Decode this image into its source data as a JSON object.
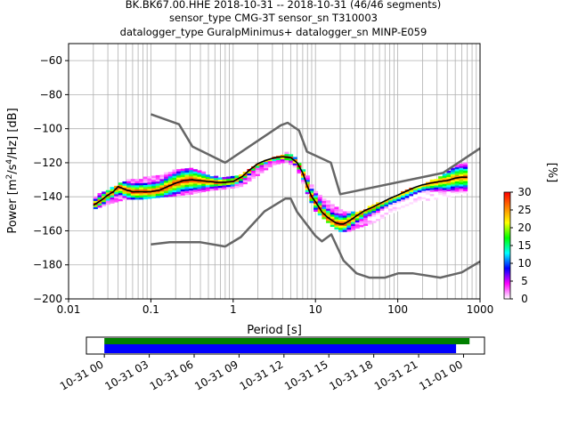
{
  "title_lines": [
    "BK.BK67.00.HHE   2018-10-31 -- 2018-10-31  (46/46 segments)",
    "sensor_type CMG-3T sensor_sn T310003",
    "datalogger_type GuralpMinimus+ datalogger_sn MINP-E059"
  ],
  "colorbar": {
    "label": "[%]",
    "ticks": [
      "0",
      "5",
      "10",
      "15",
      "20",
      "25",
      "30"
    ],
    "range": [
      0,
      30
    ],
    "colormap": "pqlx",
    "colors": [
      "#ffffff",
      "#ff00ff",
      "#0000ff",
      "#00ffff",
      "#00ff00",
      "#ffff00",
      "#ff8000",
      "#ff0000"
    ]
  },
  "timeline": {
    "tick_labels": [
      "10-31 00",
      "10-31 03",
      "10-31 06",
      "10-31 09",
      "10-31 12",
      "10-31 15",
      "10-31 18",
      "10-31 21",
      "11-01 00"
    ],
    "tick_hours": [
      0,
      3,
      6,
      9,
      12,
      15,
      18,
      21,
      24
    ],
    "range_hours": [
      -1.2,
      25.4
    ],
    "green_bar_hours": [
      0,
      24.4
    ],
    "blue_bar_hours": [
      0,
      23.5
    ],
    "green_color": "#008000",
    "blue_color": "#0000ff"
  },
  "chart_data": {
    "type": "heatmap",
    "xlabel": "Period [s]",
    "ylabel": "Power [$m^2/s^4/Hz$] [dB]",
    "xscale": "log",
    "xlim": [
      0.01,
      1000
    ],
    "ylim": [
      -200,
      -50
    ],
    "x_ticks": [
      0.01,
      0.1,
      1,
      10,
      100,
      1000
    ],
    "x_tick_labels": [
      "0.01",
      "0.1",
      "1",
      "10",
      "100",
      "1000"
    ],
    "y_ticks": [
      -200,
      -180,
      -160,
      -140,
      -120,
      -100,
      -80,
      -60
    ],
    "y_tick_labels": [
      "−200",
      "−180",
      "−160",
      "−140",
      "−120",
      "−100",
      "−80",
      "−60"
    ],
    "grid": true,
    "nhnm": {
      "color": "#666666",
      "periods": [
        0.1,
        0.22,
        0.32,
        0.8,
        3.8,
        4.6,
        6.3,
        7.9,
        15.4,
        20,
        354.8,
        1000
      ],
      "values": [
        -91.5,
        -97.4,
        -110.5,
        -120,
        -98,
        -96.5,
        -101,
        -113.5,
        -120,
        -138.5,
        -126,
        -111.5
      ]
    },
    "nlnm": {
      "color": "#666666",
      "periods": [
        0.1,
        0.17,
        0.4,
        0.8,
        1.24,
        2.4,
        4.3,
        5,
        6,
        10,
        12,
        15.6,
        21.9,
        31.6,
        45,
        70,
        101,
        154,
        328,
        600,
        1000
      ],
      "values": [
        -168,
        -166.7,
        -166.7,
        -169.2,
        -163.7,
        -148.6,
        -141.1,
        -141.1,
        -149,
        -163,
        -166.2,
        -162.1,
        -177.5,
        -185,
        -187.5,
        -187.5,
        -185,
        -185,
        -187.5,
        -184.4,
        -178
      ]
    },
    "mode_curve": {
      "color": "#000000",
      "periods": [
        0.02,
        0.025,
        0.03,
        0.035,
        0.04,
        0.05,
        0.06,
        0.08,
        0.1,
        0.13,
        0.16,
        0.2,
        0.25,
        0.32,
        0.4,
        0.5,
        0.63,
        0.8,
        1,
        1.3,
        1.6,
        2,
        2.5,
        3.2,
        4,
        5,
        6,
        7,
        8,
        9,
        10,
        11,
        12,
        14,
        16,
        18,
        20,
        22,
        25,
        28,
        32,
        40,
        50,
        63,
        80,
        100,
        130,
        160,
        200,
        250,
        320,
        400,
        500,
        600,
        700
      ],
      "values": [
        -145,
        -142,
        -139,
        -137,
        -134,
        -136,
        -137,
        -137,
        -137,
        -136,
        -134,
        -132,
        -130.5,
        -130,
        -130.5,
        -131,
        -131.5,
        -131.5,
        -131,
        -128,
        -124,
        -120.5,
        -118.5,
        -117,
        -116.5,
        -117,
        -120,
        -126,
        -134,
        -140,
        -143,
        -146,
        -149,
        -152,
        -154,
        -155.5,
        -156,
        -156,
        -154.5,
        -153,
        -151,
        -148,
        -146,
        -143.5,
        -141,
        -139,
        -136.5,
        -134.5,
        -133,
        -132,
        -131,
        -130.5,
        -129,
        -128.5,
        -128.5
      ]
    },
    "histogram_band": {
      "periods": [
        0.02,
        0.03,
        0.05,
        0.08,
        0.12,
        0.2,
        0.32,
        0.5,
        0.8,
        1.2,
        2,
        3,
        4.5,
        6,
        8,
        10,
        13,
        16,
        20,
        25,
        32,
        50,
        80,
        130,
        200,
        300,
        500,
        700
      ],
      "upper": [
        -140,
        -136,
        -130,
        -129,
        -128,
        -124,
        -123,
        -127,
        -129,
        -127,
        -121,
        -117,
        -114,
        -118,
        -128,
        -137,
        -141,
        -145,
        -147,
        -149,
        -149,
        -145,
        -141,
        -136,
        -133,
        -129,
        -122,
        -119
      ],
      "lower": [
        -147,
        -144,
        -141,
        -141,
        -140,
        -139,
        -138,
        -136,
        -135,
        -134,
        -127,
        -121,
        -119,
        -123,
        -138,
        -148,
        -153,
        -157,
        -160,
        -160,
        -158,
        -155,
        -150,
        -146,
        -142,
        -141,
        -139,
        -137
      ]
    }
  }
}
